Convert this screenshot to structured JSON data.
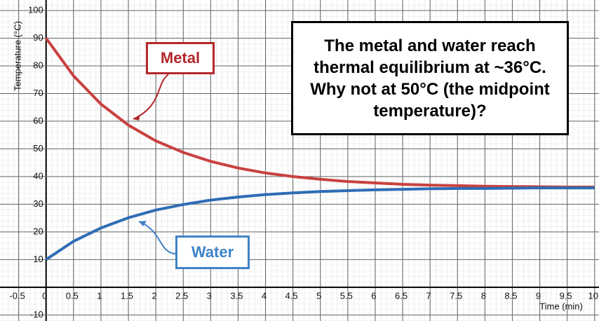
{
  "chart_data": {
    "type": "line",
    "xlabel": "Time (min)",
    "ylabel": "Temperature (°C)",
    "annotation": "The metal and water reach thermal equilibrium at ~36°C. Why not at 50°C (the midpoint temperature)?",
    "x": [
      0,
      0.5,
      1,
      1.5,
      2,
      2.5,
      3,
      3.5,
      4,
      4.5,
      5,
      5.5,
      6,
      6.5,
      7,
      7.5,
      8,
      8.5,
      9,
      9.5,
      10
    ],
    "series": [
      {
        "name": "Metal",
        "color": "#c9413f",
        "values": [
          90,
          76.4,
          66.2,
          58.6,
          52.9,
          48.7,
          45.5,
          43.1,
          41.3,
          40.0,
          39.0,
          38.2,
          37.7,
          37.2,
          36.9,
          36.7,
          36.5,
          36.4,
          36.3,
          36.2,
          36.2
        ]
      },
      {
        "name": "Water",
        "color": "#2f6db5",
        "values": [
          10,
          16.6,
          21.4,
          25.1,
          27.9,
          29.9,
          31.5,
          32.6,
          33.5,
          34.1,
          34.6,
          34.9,
          35.2,
          35.4,
          35.6,
          35.7,
          35.7,
          35.8,
          35.9,
          35.9,
          35.9
        ]
      }
    ],
    "xlim": [
      -0.84,
      10.08
    ],
    "ylim": [
      -12.2,
      103.8
    ],
    "xticks": [
      -0.5,
      0,
      0.5,
      1,
      1.5,
      2,
      2.5,
      3,
      3.5,
      4,
      4.5,
      5,
      5.5,
      6,
      6.5,
      7,
      7.5,
      8,
      8.5,
      9,
      9.5,
      10
    ],
    "yticks": [
      -10,
      0,
      10,
      20,
      30,
      40,
      50,
      60,
      70,
      80,
      90,
      100
    ],
    "grid": true
  }
}
